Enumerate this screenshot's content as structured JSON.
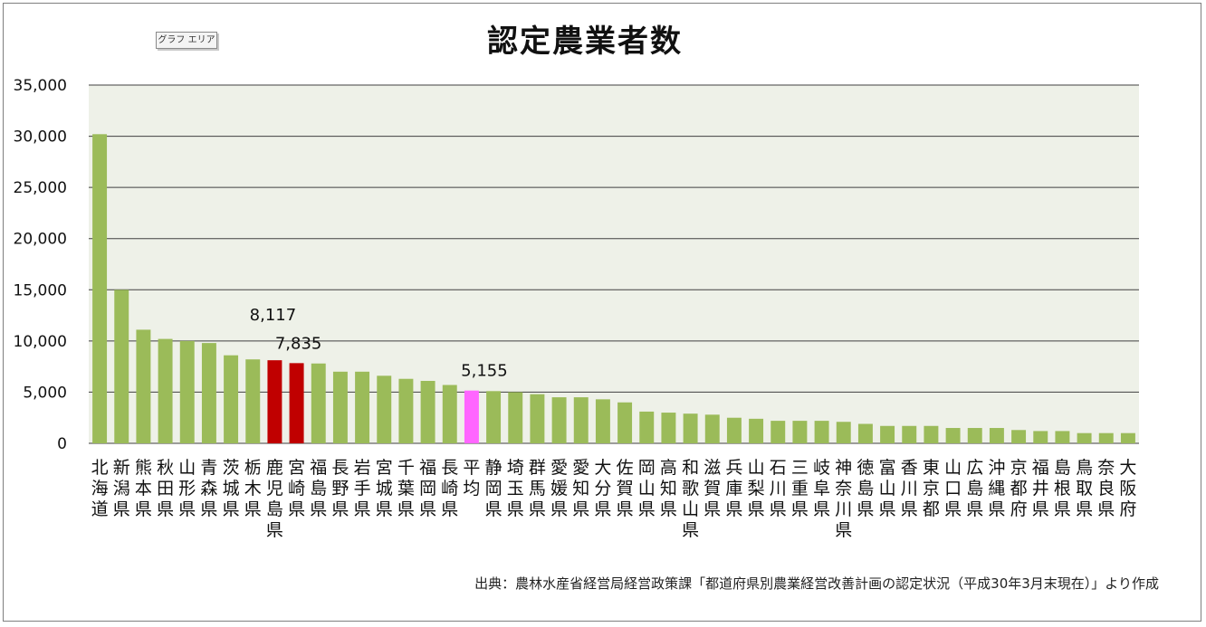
{
  "chart_area_label": "グラフ エリア",
  "source_note": "出典：農林水産省経営局経営政策課「都道府県別農業経営改善計画の認定状況（平成30年3月末現在）」より作成",
  "colors": {
    "plot_background": "#eef1e8",
    "bar_default": "#9bbb59",
    "bar_highlight": "#c00000",
    "bar_average": "#ff66ff",
    "gridline": "#404040"
  },
  "chart_data": {
    "type": "bar",
    "title": "認定農業者数",
    "xlabel": "",
    "ylabel": "",
    "ylim": [
      0,
      35000
    ],
    "yticks": [
      0,
      5000,
      10000,
      15000,
      20000,
      25000,
      30000,
      35000
    ],
    "ytick_labels": [
      "0",
      "5,000",
      "10,000",
      "15,000",
      "20,000",
      "25,000",
      "30,000",
      "35,000"
    ],
    "grid": true,
    "categories": [
      "北海道",
      "新潟県",
      "熊本県",
      "秋田県",
      "山形県",
      "青森県",
      "茨城県",
      "栃木県",
      "鹿児島県",
      "宮崎県",
      "福島県",
      "長野県",
      "岩手県",
      "宮城県",
      "千葉県",
      "福岡県",
      "長崎県",
      "平均",
      "静岡県",
      "埼玉県",
      "群馬県",
      "愛媛県",
      "愛知県",
      "大分県",
      "佐賀県",
      "岡山県",
      "高知県",
      "和歌山県",
      "滋賀県",
      "兵庫県",
      "山梨県",
      "石川県",
      "三重県",
      "岐阜県",
      "神奈川県",
      "徳島県",
      "富山県",
      "香川県",
      "東京都",
      "山口県",
      "広島県",
      "沖縄県",
      "京都府",
      "福井県",
      "島根県",
      "鳥取県",
      "奈良県",
      "大阪府"
    ],
    "values": [
      30200,
      15000,
      11100,
      10200,
      10000,
      9800,
      8600,
      8200,
      8117,
      7835,
      7800,
      7000,
      7000,
      6600,
      6300,
      6100,
      5700,
      5155,
      5100,
      5000,
      4800,
      4500,
      4500,
      4300,
      4000,
      3100,
      3000,
      2900,
      2800,
      2500,
      2400,
      2200,
      2200,
      2200,
      2100,
      1900,
      1700,
      1700,
      1700,
      1500,
      1500,
      1500,
      1300,
      1200,
      1200,
      1000,
      1000,
      1000
    ],
    "highlight": [
      "鹿児島県",
      "宮崎県"
    ],
    "average_category": "平均",
    "data_labels": [
      {
        "category": "鹿児島県",
        "value": 8117,
        "text": "8,117"
      },
      {
        "category": "宮崎県",
        "value": 7835,
        "text": "7,835"
      },
      {
        "category": "平均",
        "value": 5155,
        "text": "5,155"
      }
    ]
  }
}
